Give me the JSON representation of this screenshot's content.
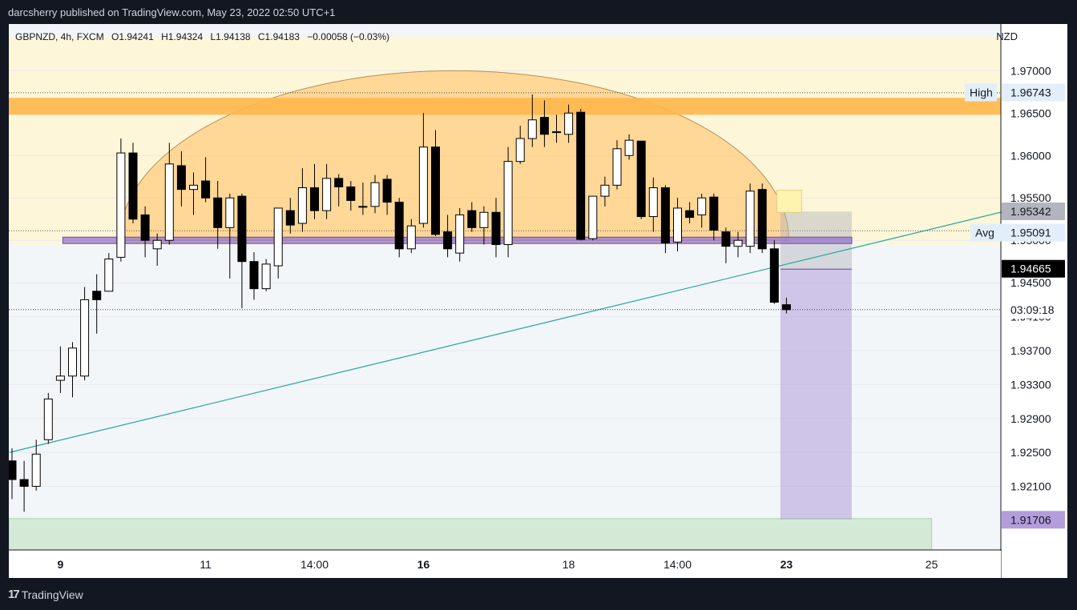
{
  "header": {
    "text": "darcsherry published on TradingView.com, May 23, 2022 02:50 UTC+1"
  },
  "legend": {
    "symbol": "GBPNZD, 4h, FXCM",
    "open": "O1.94241",
    "high": "H1.94324",
    "low": "L1.94138",
    "close": "C1.94183",
    "change": "−0.00058 (−0.03%)"
  },
  "currency": "NZD",
  "footer": {
    "logo_text": "TradingView",
    "logo_mark": "17"
  },
  "labels": {
    "high_tag": "High",
    "avg_tag": "Avg",
    "high_price": "1.96743",
    "top_box_price": "1.95342",
    "avg_price": "1.95091",
    "current_price": "1.94665",
    "countdown": "03:09:18",
    "target_price": "1.91706"
  },
  "colors": {
    "up_candle": "#ffffff",
    "down_candle": "#000000",
    "resistance_zone": "#ffb74d",
    "dome": "#ffcc80",
    "trendline": "#26a69a",
    "avg_line": "#9575cd",
    "target_box": "#b39ddb",
    "bottom_zone": "#c8e6c9"
  },
  "chart_data": {
    "type": "candlestick",
    "symbol": "GBPNZD",
    "timeframe": "4h",
    "y_axis": {
      "range": [
        1.9135,
        1.9755
      ],
      "ticks": [
        "1.97000",
        "1.96500",
        "1.96000",
        "1.95500",
        "1.95000",
        "1.94500",
        "1.94100",
        "1.93700",
        "1.93300",
        "1.92900",
        "1.92500",
        "1.92100"
      ]
    },
    "x_axis": {
      "ticks": [
        {
          "label": "9",
          "bold": true,
          "index": 4
        },
        {
          "label": "11",
          "bold": false,
          "index": 16
        },
        {
          "label": "14:00",
          "bold": false,
          "index": 25
        },
        {
          "label": "16",
          "bold": true,
          "index": 34
        },
        {
          "label": "18",
          "bold": false,
          "index": 46
        },
        {
          "label": "14:00",
          "bold": false,
          "index": 55
        },
        {
          "label": "23",
          "bold": true,
          "index": 64
        },
        {
          "label": "25",
          "bold": false,
          "index": 76
        }
      ]
    },
    "candles": [
      [
        1.924,
        1.9255,
        1.9195,
        1.9218
      ],
      [
        1.9218,
        1.924,
        1.918,
        1.921
      ],
      [
        1.921,
        1.9265,
        1.9205,
        1.9248
      ],
      [
        1.9265,
        1.932,
        1.926,
        1.9313
      ],
      [
        1.9335,
        1.9375,
        1.932,
        1.934
      ],
      [
        1.934,
        1.938,
        1.9315,
        1.9373
      ],
      [
        1.934,
        1.9445,
        1.9335,
        1.943
      ],
      [
        1.944,
        1.946,
        1.939,
        1.943
      ],
      [
        1.944,
        1.9485,
        1.944,
        1.9478
      ],
      [
        1.948,
        1.962,
        1.9475,
        1.9603
      ],
      [
        1.9603,
        1.9615,
        1.952,
        1.9525
      ],
      [
        1.953,
        1.954,
        1.948,
        1.95
      ],
      [
        1.949,
        1.9508,
        1.947,
        1.95
      ],
      [
        1.95,
        1.9615,
        1.9495,
        1.959
      ],
      [
        1.9588,
        1.9605,
        1.954,
        1.956
      ],
      [
        1.956,
        1.958,
        1.953,
        1.9565
      ],
      [
        1.957,
        1.9598,
        1.9545,
        1.955
      ],
      [
        1.955,
        1.957,
        1.949,
        1.9515
      ],
      [
        1.9515,
        1.9555,
        1.9455,
        1.955
      ],
      [
        1.9552,
        1.9555,
        1.942,
        1.9475
      ],
      [
        1.9475,
        1.9486,
        1.943,
        1.9443
      ],
      [
        1.9443,
        1.9478,
        1.944,
        1.9472
      ],
      [
        1.947,
        1.9532,
        1.9455,
        1.9538
      ],
      [
        1.9535,
        1.955,
        1.9508,
        1.9518
      ],
      [
        1.952,
        1.9585,
        1.951,
        1.9562
      ],
      [
        1.9562,
        1.959,
        1.9525,
        1.9535
      ],
      [
        1.9535,
        1.959,
        1.9525,
        1.9573
      ],
      [
        1.9573,
        1.9578,
        1.954,
        1.9563
      ],
      [
        1.9563,
        1.957,
        1.9535,
        1.9547
      ],
      [
        1.954,
        1.9568,
        1.953,
        1.954
      ],
      [
        1.954,
        1.9577,
        1.9532,
        1.9568
      ],
      [
        1.9572,
        1.9577,
        1.953,
        1.9545
      ],
      [
        1.9545,
        1.955,
        1.948,
        1.949
      ],
      [
        1.949,
        1.9525,
        1.9485,
        1.9517
      ],
      [
        1.952,
        1.965,
        1.9515,
        1.961
      ],
      [
        1.961,
        1.963,
        1.9505,
        1.9507
      ],
      [
        1.951,
        1.953,
        1.948,
        1.949
      ],
      [
        1.9485,
        1.9538,
        1.9475,
        1.953
      ],
      [
        1.9535,
        1.9545,
        1.951,
        1.9515
      ],
      [
        1.9515,
        1.954,
        1.9495,
        1.9533
      ],
      [
        1.9533,
        1.955,
        1.948,
        1.9495
      ],
      [
        1.9495,
        1.961,
        1.948,
        1.9593
      ],
      [
        1.9593,
        1.9635,
        1.959,
        1.962
      ],
      [
        1.962,
        1.9672,
        1.961,
        1.9642
      ],
      [
        1.9645,
        1.9665,
        1.961,
        1.9625
      ],
      [
        1.9628,
        1.9648,
        1.9615,
        1.9628
      ],
      [
        1.9625,
        1.966,
        1.9615,
        1.965
      ],
      [
        1.9651,
        1.9655,
        1.95,
        1.9501
      ],
      [
        1.9502,
        1.955,
        1.95,
        1.9552
      ],
      [
        1.9552,
        1.9575,
        1.954,
        1.9565
      ],
      [
        1.9565,
        1.9618,
        1.956,
        1.9608
      ],
      [
        1.96,
        1.9625,
        1.9595,
        1.9618
      ],
      [
        1.9617,
        1.9617,
        1.9525,
        1.9528
      ],
      [
        1.9528,
        1.9574,
        1.951,
        1.9562
      ],
      [
        1.9562,
        1.9565,
        1.9485,
        1.9497
      ],
      [
        1.9498,
        1.955,
        1.9487,
        1.9538
      ],
      [
        1.9535,
        1.9545,
        1.952,
        1.9527
      ],
      [
        1.953,
        1.9555,
        1.9515,
        1.955
      ],
      [
        1.9551,
        1.9555,
        1.95,
        1.9512
      ],
      [
        1.951,
        1.9515,
        1.9473,
        1.9493
      ],
      [
        1.9493,
        1.951,
        1.948,
        1.95
      ],
      [
        1.9493,
        1.9567,
        1.9485,
        1.9558
      ],
      [
        1.956,
        1.9567,
        1.9485,
        1.949
      ],
      [
        1.949,
        1.95,
        1.9425,
        1.9427
      ],
      [
        1.94241,
        1.94324,
        1.94138,
        1.94183
      ]
    ],
    "zones": {
      "resistance": [
        1.9648,
        1.9668
      ],
      "upper_band": [
        1.9495,
        1.974
      ],
      "support_line": 1.95,
      "target_box": [
        1.9171,
        1.9466
      ],
      "stop_box": [
        1.9466,
        1.9534
      ],
      "bottom_zone": [
        1.9135,
        1.9172
      ],
      "dotted_high": 1.9674
    },
    "trendline": [
      [
        -0.2,
        1.925
      ],
      [
        89.5,
        1.956
      ]
    ]
  }
}
